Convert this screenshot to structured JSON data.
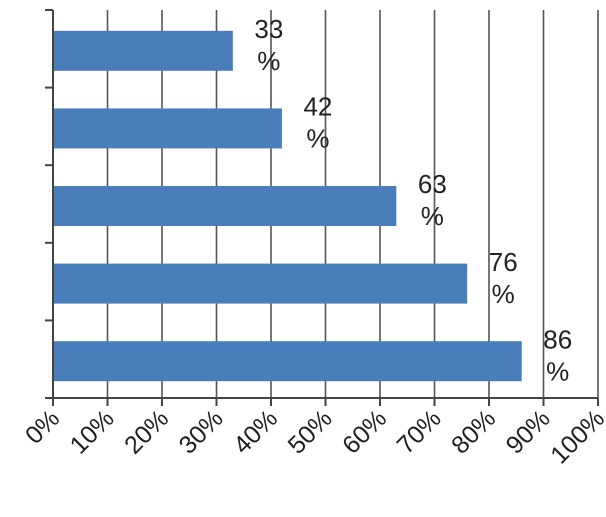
{
  "chart_data": {
    "type": "bar",
    "orientation": "horizontal",
    "categories": [
      "",
      "",
      "",
      "",
      ""
    ],
    "values": [
      33,
      42,
      63,
      76,
      86
    ],
    "value_unit": "%",
    "xlim": [
      0,
      100
    ],
    "xticks": [
      0,
      10,
      20,
      30,
      40,
      50,
      60,
      70,
      80,
      90,
      100
    ],
    "tick_labels": [
      "0%",
      "10%",
      "20%",
      "30%",
      "40%",
      "50%",
      "60%",
      "70%",
      "80%",
      "90%",
      "100%"
    ],
    "grid": "vertical",
    "legend": "none",
    "bar_color": "#4a7ebb",
    "grid_color": "#555555",
    "background_color": "#ffffff",
    "data_labels": [
      {
        "value": "33",
        "unit": "%"
      },
      {
        "value": "42",
        "unit": "%"
      },
      {
        "value": "63",
        "unit": "%"
      },
      {
        "value": "76",
        "unit": "%"
      },
      {
        "value": "86",
        "unit": "%"
      }
    ]
  }
}
